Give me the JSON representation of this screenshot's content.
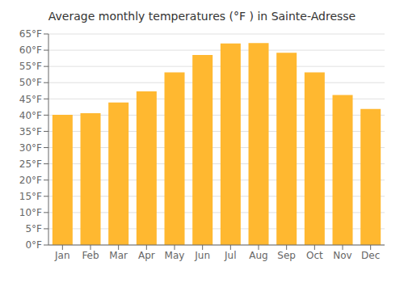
{
  "chart_data": {
    "type": "bar",
    "title": "Average monthly temperatures (°F ) in Sainte-Adresse",
    "categories": [
      "Jan",
      "Feb",
      "Mar",
      "Apr",
      "May",
      "Jun",
      "Jul",
      "Aug",
      "Sep",
      "Oct",
      "Nov",
      "Dec"
    ],
    "values": [
      40.1,
      40.6,
      43.9,
      47.3,
      53.2,
      58.5,
      62.1,
      62.2,
      59.2,
      53.2,
      46.2,
      41.9
    ],
    "color": "#FFB830",
    "ylim": [
      0,
      65
    ],
    "yticks": [
      {
        "value": 0,
        "label": "0°F"
      },
      {
        "value": 5,
        "label": "5°F"
      },
      {
        "value": 10,
        "label": "10°F"
      },
      {
        "value": 15,
        "label": "15°F"
      },
      {
        "value": 20,
        "label": "20°F"
      },
      {
        "value": 25,
        "label": "25°F"
      },
      {
        "value": 30,
        "label": "30°F"
      },
      {
        "value": 35,
        "label": "35°F"
      },
      {
        "value": 40,
        "label": "40°F"
      },
      {
        "value": 45,
        "label": "45°F"
      },
      {
        "value": 50,
        "label": "50°F"
      },
      {
        "value": 55,
        "label": "55°F"
      },
      {
        "value": 60,
        "label": "60°F"
      },
      {
        "value": 65,
        "label": "65°F"
      }
    ],
    "grid": true
  }
}
